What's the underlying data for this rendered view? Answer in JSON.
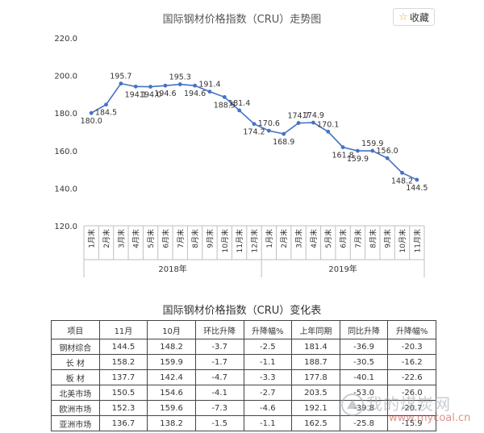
{
  "header": {
    "favorite_label": "收藏",
    "favorite_icon": "star-icon"
  },
  "chart_data": {
    "type": "line",
    "title": "国际钢材价格指数（CRU）走势图",
    "xlabel": "",
    "ylabel": "",
    "ylim": [
      120,
      220
    ],
    "yticks": [
      "120.0",
      "140.0",
      "160.0",
      "180.0",
      "200.0",
      "220.0"
    ],
    "grid": false,
    "legend": "none",
    "color": "#4472c4",
    "categories": [
      "1月末",
      "2月末",
      "3月末",
      "4月末",
      "5月末",
      "6月末",
      "7月末",
      "8月末",
      "9月末",
      "10月末",
      "11月末",
      "12月末",
      "1月末",
      "2月末",
      "3月末",
      "4月末",
      "5月末",
      "6月末",
      "7月末",
      "8月末",
      "9月末",
      "10月末",
      "11月末"
    ],
    "years": [
      {
        "label": "2018年",
        "count": 12
      },
      {
        "label": "2019年",
        "count": 11
      }
    ],
    "series": [
      {
        "values": [
          180.0,
          184.5,
          195.7,
          194.1,
          194.0,
          194.6,
          195.3,
          194.6,
          191.4,
          188.5,
          181.4,
          174.2,
          170.6,
          168.9,
          174.7,
          174.9,
          170.1,
          161.8,
          159.9,
          159.9,
          156.0,
          148.2,
          144.5
        ],
        "labels": [
          "180.0",
          "184.5",
          "195.7",
          "194.1",
          "194.0",
          "194.6",
          "195.3",
          "194.6",
          "191.4",
          "188.5",
          "181.4",
          "174.2",
          "170.6",
          "168.9",
          "174.7",
          "174.9",
          "170.1",
          "161.8",
          "159.9",
          "159.9",
          "156.0",
          "148.2",
          "144.5"
        ]
      }
    ]
  },
  "table": {
    "title": "国际钢材价格指数（CRU）变化表",
    "headers": [
      "项目",
      "11月",
      "10月",
      "环比升降",
      "升降幅%",
      "上年同期",
      "同比升降",
      "升降幅%"
    ],
    "rows": [
      [
        "钢材综合",
        "144.5",
        "148.2",
        "-3.7",
        "-2.5",
        "181.4",
        "-36.9",
        "-20.3"
      ],
      [
        "长  材",
        "158.2",
        "159.9",
        "-1.7",
        "-1.1",
        "188.7",
        "-30.5",
        "-16.2"
      ],
      [
        "板  材",
        "137.7",
        "142.4",
        "-4.7",
        "-3.3",
        "177.8",
        "-40.1",
        "-22.6"
      ],
      [
        "北美市场",
        "150.5",
        "154.6",
        "-4.1",
        "-2.7",
        "203.5",
        "-53.0",
        "-26.0"
      ],
      [
        "欧洲市场",
        "152.3",
        "159.6",
        "-7.3",
        "-4.6",
        "192.1",
        "-39.8",
        "-20.7"
      ],
      [
        "亚洲市场",
        "136.7",
        "138.2",
        "-1.5",
        "-1.1",
        "162.5",
        "-25.8",
        "-15.9"
      ]
    ]
  },
  "watermark": {
    "text": "我的煤炭网",
    "url": "www.mycoal.cn",
    "logo_icon": "coal-logo-icon"
  }
}
